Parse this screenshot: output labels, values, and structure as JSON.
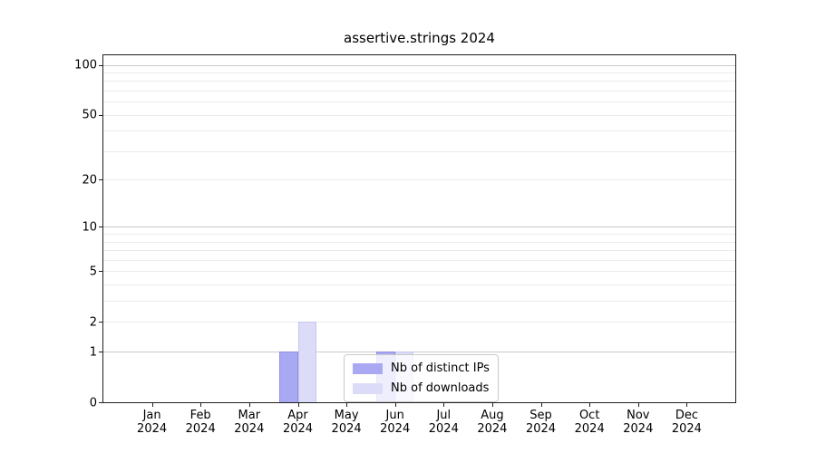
{
  "figure": {
    "background": "#ffffff",
    "axis_color": "#1f1f1f",
    "major_grid_color": "#c9c9c9",
    "minor_grid_color": "#ebebeb"
  },
  "chart_data": {
    "type": "bar",
    "title": "assertive.strings 2024",
    "categories": [
      "Jan 2024",
      "Feb 2024",
      "Mar 2024",
      "Apr 2024",
      "May 2024",
      "Jun 2024",
      "Jul 2024",
      "Aug 2024",
      "Sep 2024",
      "Oct 2024",
      "Nov 2024",
      "Dec 2024"
    ],
    "series": [
      {
        "name": "Nb of distinct IPs",
        "color": "#a9a9f3",
        "edge_color": "#8f8fe2",
        "values": [
          0,
          0,
          0,
          1,
          0,
          1,
          0,
          0,
          0,
          0,
          0,
          0
        ]
      },
      {
        "name": "Nb of downloads",
        "color": "#dcdcf9",
        "edge_color": "#c6c6f0",
        "values": [
          0,
          0,
          0,
          2,
          0,
          1,
          0,
          0,
          0,
          0,
          0,
          0
        ]
      }
    ],
    "xlabel": "",
    "ylabel": "",
    "yscale": "log1p",
    "ylim": [
      0,
      114
    ],
    "y_tick_labels": [
      0,
      1,
      2,
      5,
      10,
      20,
      50,
      100
    ],
    "y_major_gridlines": [
      1,
      10,
      100
    ],
    "y_minor_gridlines": [
      2,
      3,
      4,
      5,
      6,
      7,
      8,
      9,
      20,
      30,
      40,
      50,
      60,
      70,
      80,
      90
    ],
    "grid": "horizontal",
    "legend_position": "lower center-left, inside plot"
  }
}
